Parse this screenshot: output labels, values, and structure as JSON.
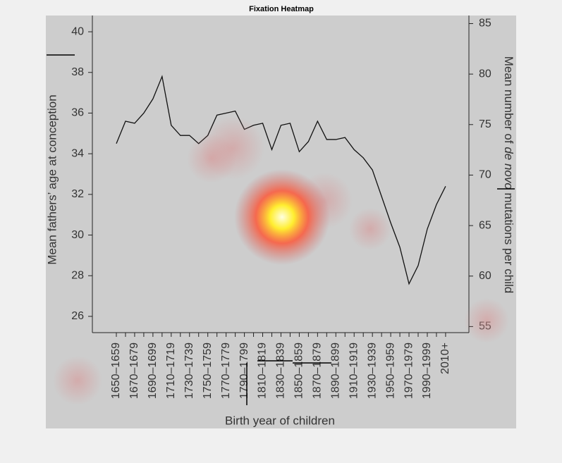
{
  "chart_data": {
    "type": "line",
    "title": "Fixation Heatmap",
    "x_label": "Birth year of children",
    "y_label": "Mean fathers’ age at conception",
    "y2_label_parts": [
      "Mean number of ",
      "de novo",
      " mutations per child"
    ],
    "categories": [
      "1650–1659",
      null,
      "1670–1679",
      null,
      "1690–1699",
      null,
      "1710–1719",
      null,
      "1730–1739",
      null,
      "1750–1759",
      null,
      "1770–1779",
      null,
      "1790–1799",
      null,
      "1810–1819",
      null,
      "1830–1839",
      null,
      "1850–1859",
      null,
      "1870–1879",
      null,
      "1890–1899",
      null,
      "1910–1919",
      null,
      "1930–1939",
      null,
      "1950–1959",
      null,
      "1970–1979",
      null,
      "1990–1999",
      null,
      "2010+"
    ],
    "series": [
      {
        "name": "Mean fathers’ age",
        "color": "#111111",
        "values": [
          34.5,
          35.6,
          35.5,
          36.0,
          36.7,
          37.8,
          35.4,
          34.9,
          34.9,
          34.5,
          34.9,
          35.9,
          36.0,
          36.1,
          35.2,
          35.4,
          35.5,
          34.2,
          35.4,
          35.5,
          34.1,
          34.6,
          35.6,
          34.7,
          34.7,
          34.8,
          34.2,
          33.8,
          33.2,
          31.9,
          30.6,
          29.4,
          27.6,
          28.5,
          30.3,
          31.5,
          32.4
        ]
      }
    ],
    "ylim": [
      25.2,
      40.8
    ],
    "yticks": [
      26,
      28,
      30,
      32,
      34,
      36,
      38,
      40
    ],
    "y2lim": [
      54.4,
      85.8
    ],
    "y2ticks": [
      55,
      60,
      65,
      70,
      75,
      80,
      85
    ]
  }
}
